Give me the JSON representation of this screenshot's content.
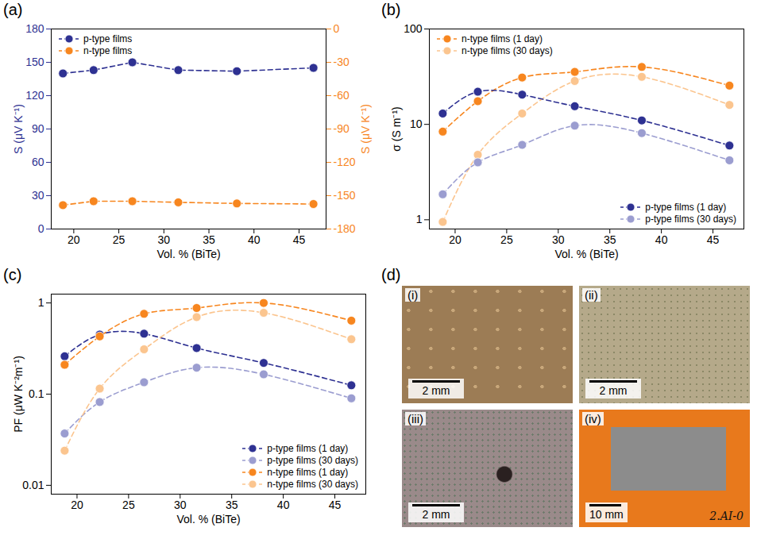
{
  "chart_data": [
    {
      "type": "line",
      "panel": "(a)",
      "x": [
        18.8,
        22.2,
        26.5,
        31.6,
        38.1,
        46.6
      ],
      "xlabel": "Vol. % (BiTe)",
      "ylabel": "S (μV K⁻¹)",
      "y2label": "S (μV K⁻¹)",
      "xlim": [
        17.5,
        48
      ],
      "xticks": [
        20,
        25,
        30,
        35,
        40,
        45
      ],
      "ylim": [
        0,
        180
      ],
      "yticks": [
        0,
        30,
        60,
        90,
        120,
        150,
        180
      ],
      "y2lim": [
        -180,
        0
      ],
      "y2ticks": [
        0,
        -30,
        -60,
        -90,
        -120,
        -150,
        -180
      ],
      "legend": "upper left",
      "marker": "circle",
      "line_style": "dashed",
      "series": [
        {
          "name": "p-type films",
          "color": "#2e3192",
          "values": [
            140,
            143,
            150,
            143,
            142,
            145
          ]
        },
        {
          "name": "n-type films",
          "color": "#f7861f",
          "axis": "y2",
          "values": [
            -158.5,
            -155,
            -155,
            -156,
            -157,
            -157.5
          ]
        }
      ]
    },
    {
      "type": "line",
      "panel": "(b)",
      "x": [
        18.8,
        22.2,
        26.5,
        31.6,
        38.1,
        46.6
      ],
      "xlabel": "Vol. % (BiTe)",
      "ylabel": "σ (S m⁻¹)",
      "xlim": [
        17.5,
        48
      ],
      "xticks": [
        20,
        25,
        30,
        35,
        40,
        45
      ],
      "ylim": [
        0.8,
        100
      ],
      "yticks": [
        1,
        10,
        100
      ],
      "log": "y",
      "marker": "circle",
      "line_style": "dashed",
      "series": [
        {
          "name": "n-type films (1 day)",
          "color": "#f7861f",
          "legend": "upper left",
          "values": [
            8.4,
            17.5,
            31,
            35.5,
            40,
            25.5
          ]
        },
        {
          "name": "n-type films (30 days)",
          "color": "#fbc58f",
          "legend": "upper left",
          "values": [
            0.95,
            4.8,
            13,
            28.5,
            31.5,
            16
          ]
        },
        {
          "name": "p-type films (1 day)",
          "color": "#2e3192",
          "legend": "lower right",
          "values": [
            13,
            22,
            20.5,
            15.5,
            11,
            6
          ]
        },
        {
          "name": "p-type films (30 days)",
          "color": "#9b9dd0",
          "legend": "lower right",
          "values": [
            1.85,
            4,
            6.1,
            9.7,
            8.1,
            4.2
          ]
        }
      ]
    },
    {
      "type": "line",
      "panel": "(c)",
      "x": [
        18.8,
        22.2,
        26.5,
        31.6,
        38.1,
        46.6
      ],
      "xlabel": "Vol. % (BiTe)",
      "ylabel": "PF (μW K⁻²m⁻¹)",
      "xlim": [
        17.5,
        48
      ],
      "xticks": [
        20,
        25,
        30,
        35,
        40,
        45
      ],
      "ylim": [
        0.008,
        1.25
      ],
      "yticks": [
        0.01,
        0.1,
        1
      ],
      "log": "y",
      "legend": "lower right",
      "marker": "circle",
      "line_style": "dashed",
      "series": [
        {
          "name": "p-type films (1 day)",
          "color": "#2e3192",
          "values": [
            0.26,
            0.45,
            0.46,
            0.32,
            0.22,
            0.125
          ]
        },
        {
          "name": "p-type films (30 days)",
          "color": "#9b9dd0",
          "values": [
            0.037,
            0.082,
            0.135,
            0.195,
            0.165,
            0.09
          ]
        },
        {
          "name": "n-type films (1 day)",
          "color": "#f7861f",
          "values": [
            0.21,
            0.43,
            0.76,
            0.88,
            1.0,
            0.64
          ]
        },
        {
          "name": "n-type films (30 days)",
          "color": "#fbc58f",
          "values": [
            0.024,
            0.115,
            0.31,
            0.7,
            0.78,
            0.4
          ]
        }
      ]
    }
  ],
  "panel_d": {
    "label": "(d)",
    "images": [
      {
        "label": "(i)",
        "scale_bar": "2 mm"
      },
      {
        "label": "(ii)",
        "scale_bar": "2 mm"
      },
      {
        "label": "(iii)",
        "scale_bar": "2 mm"
      },
      {
        "label": "(iv)",
        "scale_bar": "10 mm",
        "annotation": "2.AI-0"
      }
    ]
  }
}
